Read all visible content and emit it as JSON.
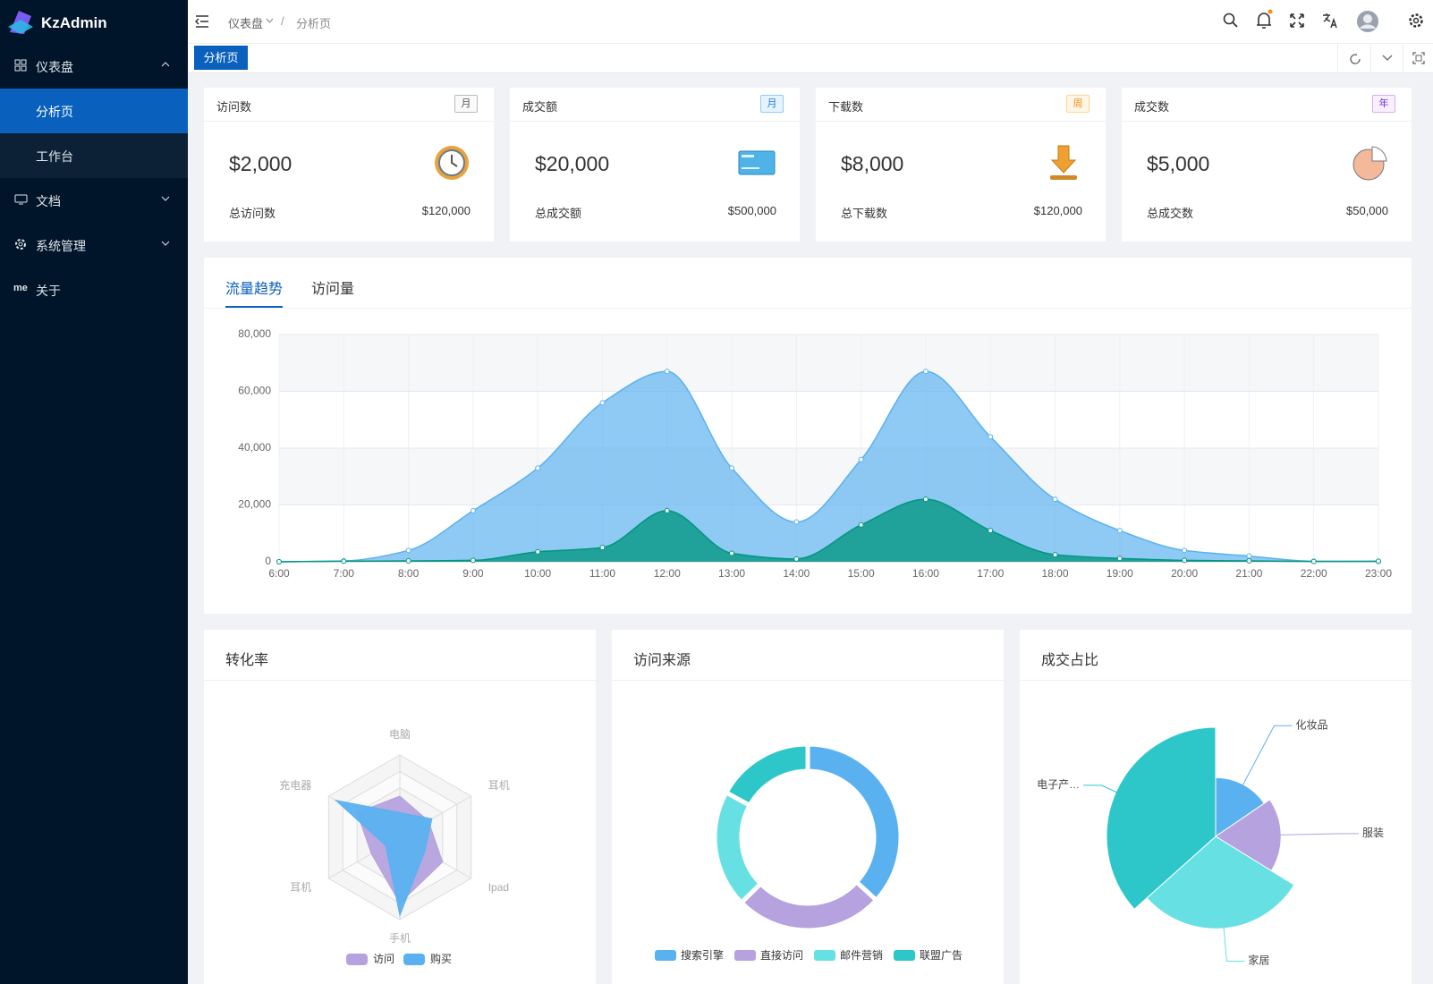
{
  "sidebar": {
    "logo": "KzAdmin",
    "menu": [
      {
        "label": "仪表盘",
        "children": [
          "分析页",
          "工作台"
        ]
      },
      {
        "label": "文档"
      },
      {
        "label": "系统管理"
      },
      {
        "icon": "me",
        "label": "关于"
      }
    ]
  },
  "header": {
    "breadcrumb": [
      "仪表盘",
      "分析页"
    ],
    "breadcrumb_separator": "/",
    "tabs": [
      "分析页"
    ]
  },
  "cards": [
    {
      "title": "访问数",
      "badge": "月",
      "value": "$2,000",
      "footer_label": "总访问数",
      "footer_value": "$120,000"
    },
    {
      "title": "成交额",
      "badge": "月",
      "value": "$20,000",
      "footer_label": "总成交额",
      "footer_value": "$500,000"
    },
    {
      "title": "下载数",
      "badge": "周",
      "value": "$8,000",
      "footer_label": "总下载数",
      "footer_value": "$120,000"
    },
    {
      "title": "成交数",
      "badge": "年",
      "value": "$5,000",
      "footer_label": "总成交数",
      "footer_value": "$50,000"
    }
  ],
  "chart_data": [
    {
      "type": "area",
      "tabs": [
        "流量趋势",
        "访问量"
      ],
      "x": [
        "6:00",
        "7:00",
        "8:00",
        "9:00",
        "10:00",
        "11:00",
        "12:00",
        "13:00",
        "14:00",
        "15:00",
        "16:00",
        "17:00",
        "18:00",
        "19:00",
        "20:00",
        "21:00",
        "22:00",
        "23:00"
      ],
      "series": [
        {
          "color": "#5ab1ef",
          "values": [
            0,
            300,
            4000,
            18000,
            33000,
            56000,
            67000,
            33000,
            14000,
            36000,
            67000,
            44000,
            22000,
            11000,
            4000,
            2000,
            200,
            100
          ]
        },
        {
          "color": "#019680",
          "values": [
            0,
            200,
            300,
            500,
            3500,
            5000,
            18000,
            3000,
            1000,
            13000,
            22000,
            11000,
            2500,
            1200,
            500,
            300,
            100,
            200
          ]
        }
      ],
      "ylim": [
        0,
        80000
      ],
      "yticks": [
        0,
        {
          "value": 20000,
          "label": "20,000"
        },
        {
          "value": 40000,
          "label": "40,000"
        },
        {
          "value": 60000,
          "label": "60,000"
        },
        {
          "value": 80000,
          "label": "80,000"
        }
      ],
      "grid": true
    },
    {
      "type": "radar",
      "title": "转化率",
      "indicators": [
        "电脑",
        "耳机",
        "Ipad",
        "手机",
        "耳机",
        "充电器"
      ],
      "rlim": [
        0,
        100
      ],
      "series": [
        {
          "name": "访问",
          "color": "#b6a2de",
          "values": [
            50,
            40,
            60,
            80,
            40,
            60
          ]
        },
        {
          "name": "购买",
          "color": "#5ab1ef",
          "values": [
            30,
            45,
            35,
            95,
            20,
            90
          ]
        }
      ]
    },
    {
      "type": "donut",
      "title": "访问来源",
      "categories": [
        "搜索引擎",
        "直接访问",
        "邮件营销",
        "联盟广告"
      ],
      "values": [
        1048,
        735,
        580,
        484
      ],
      "colors": [
        "#5ab1ef",
        "#b6a2de",
        "#67e0e3",
        "#2ec7c9"
      ]
    },
    {
      "type": "rose",
      "title": "成交占比",
      "categories": [
        "化妆品",
        "服装",
        "家居",
        "电子产…"
      ],
      "values": [
        110,
        130,
        210,
        260
      ],
      "colors": [
        "#5ab1ef",
        "#b6a2de",
        "#67e0e3",
        "#2ec7c9"
      ]
    }
  ]
}
